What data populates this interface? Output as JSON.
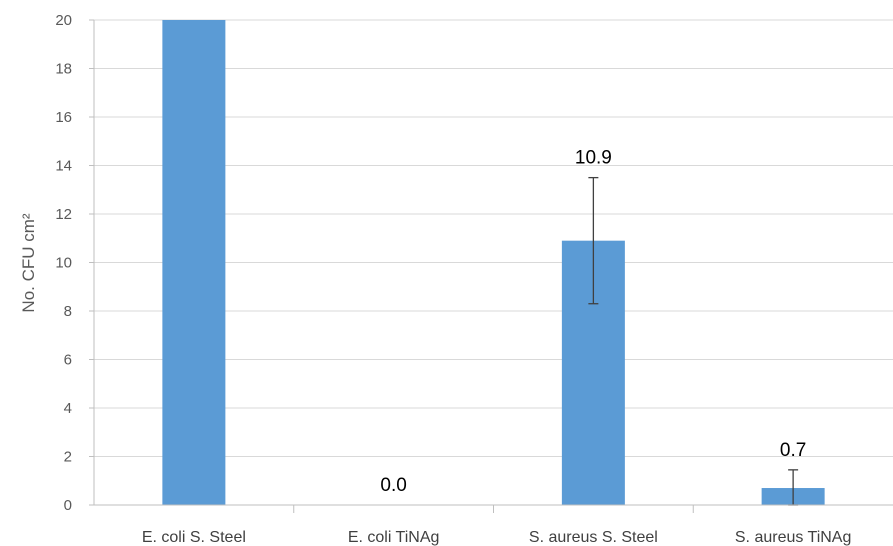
{
  "chart_data": {
    "type": "bar",
    "title": "",
    "xlabel": "",
    "ylabel": "No. CFU cm²",
    "ylim": [
      0,
      20
    ],
    "yticks": [
      0,
      2,
      4,
      6,
      8,
      10,
      12,
      14,
      16,
      18,
      20
    ],
    "ytick_labels": [
      "0",
      "2",
      "4",
      "6",
      "8",
      "10",
      "12",
      "14",
      "16",
      "18",
      "20"
    ],
    "grid": true,
    "categories": [
      "E. coli S. Steel",
      "E. coli TiNAg",
      "S. aureus S. Steel",
      "S. aureus TiNAg"
    ],
    "values": [
      20,
      0.0,
      10.9,
      0.7
    ],
    "error": [
      null,
      null,
      2.6,
      0.75
    ],
    "data_labels": [
      null,
      "0.0",
      "10.9",
      "0.7"
    ],
    "bar_color": "#5B9BD5"
  }
}
